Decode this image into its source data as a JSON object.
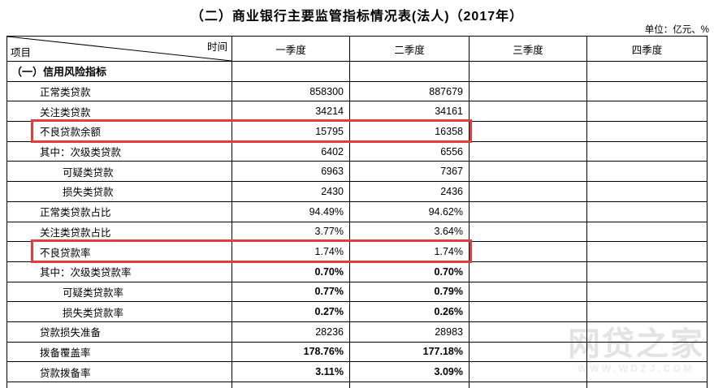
{
  "title": "（二）商业银行主要监管指标情况表(法人)（2017年）",
  "unit_note": "单位：亿元、%",
  "table": {
    "corner": {
      "time_label": "时间",
      "item_label": "项目"
    },
    "columns": [
      "一季度",
      "二季度",
      "三季度",
      "四季度"
    ],
    "rows": [
      {
        "label": "（一）信用风险指标",
        "indent": 0,
        "section": true,
        "bold_values": false,
        "highlighted": false,
        "values": [
          "",
          "",
          "",
          ""
        ]
      },
      {
        "label": "正常类贷款",
        "indent": 1,
        "section": false,
        "bold_values": false,
        "highlighted": false,
        "values": [
          "858300",
          "887679",
          "",
          ""
        ]
      },
      {
        "label": "关注类贷款",
        "indent": 1,
        "section": false,
        "bold_values": false,
        "highlighted": false,
        "values": [
          "34214",
          "34161",
          "",
          ""
        ]
      },
      {
        "label": "不良贷款余额",
        "indent": 1,
        "section": false,
        "bold_values": false,
        "highlighted": true,
        "values": [
          "15795",
          "16358",
          "",
          ""
        ]
      },
      {
        "label": "其中：次级类贷款",
        "indent": 1,
        "section": false,
        "bold_values": false,
        "highlighted": false,
        "values": [
          "6402",
          "6556",
          "",
          ""
        ]
      },
      {
        "label": "可疑类贷款",
        "indent": 2,
        "section": false,
        "bold_values": false,
        "highlighted": false,
        "values": [
          "6963",
          "7367",
          "",
          ""
        ]
      },
      {
        "label": "损失类贷款",
        "indent": 2,
        "section": false,
        "bold_values": false,
        "highlighted": false,
        "values": [
          "2430",
          "2436",
          "",
          ""
        ]
      },
      {
        "label": "正常类贷款占比",
        "indent": 1,
        "section": false,
        "bold_values": false,
        "highlighted": false,
        "values": [
          "94.49%",
          "94.62%",
          "",
          ""
        ]
      },
      {
        "label": "关注类贷款占比",
        "indent": 1,
        "section": false,
        "bold_values": false,
        "highlighted": false,
        "values": [
          "3.77%",
          "3.64%",
          "",
          ""
        ]
      },
      {
        "label": "不良贷款率",
        "indent": 1,
        "section": false,
        "bold_values": false,
        "highlighted": true,
        "values": [
          "1.74%",
          "1.74%",
          "",
          ""
        ]
      },
      {
        "label": "其中：次级类贷款率",
        "indent": 1,
        "section": false,
        "bold_values": true,
        "highlighted": false,
        "values": [
          "0.70%",
          "0.70%",
          "",
          ""
        ]
      },
      {
        "label": "可疑类贷款率",
        "indent": 2,
        "section": false,
        "bold_values": true,
        "highlighted": false,
        "values": [
          "0.77%",
          "0.79%",
          "",
          ""
        ]
      },
      {
        "label": "损失类贷款率",
        "indent": 2,
        "section": false,
        "bold_values": true,
        "highlighted": false,
        "values": [
          "0.27%",
          "0.26%",
          "",
          ""
        ]
      },
      {
        "label": "贷款损失准备",
        "indent": 1,
        "section": false,
        "bold_values": false,
        "highlighted": false,
        "values": [
          "28236",
          "28983",
          "",
          ""
        ]
      },
      {
        "label": "拨备覆盖率",
        "indent": 1,
        "section": false,
        "bold_values": true,
        "highlighted": false,
        "values": [
          "178.76%",
          "177.18%",
          "",
          ""
        ]
      },
      {
        "label": "贷款拨备率",
        "indent": 1,
        "section": false,
        "bold_values": true,
        "highlighted": false,
        "values": [
          "3.11%",
          "3.09%",
          "",
          ""
        ]
      }
    ]
  },
  "watermark": {
    "line1": "网贷之家",
    "line2": "WWW.WDZJ.COM"
  },
  "colors": {
    "highlight_box": "#e23c3c",
    "grid_line": "#000000",
    "watermark": "#e3e3e3"
  }
}
